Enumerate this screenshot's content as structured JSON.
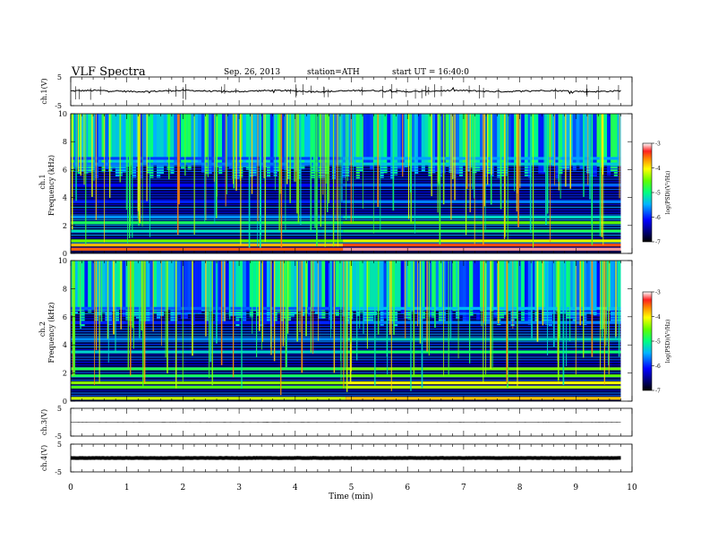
{
  "header": {
    "title": "VLF  Spectra",
    "date": "Sep. 26, 2013",
    "station": "station=ATH",
    "start": "start  UT =   16:40:0"
  },
  "chart_data": {
    "type": "heatmap",
    "title": "VLF  Spectra",
    "xlabel": "Time  (min)",
    "x_ticks": [
      "0",
      "1",
      "2",
      "3",
      "4",
      "5",
      "6",
      "7",
      "8",
      "9",
      "10"
    ],
    "xlim": [
      0,
      10
    ],
    "data_end_min": 9.8,
    "panels": [
      {
        "name": "ch.1",
        "kind": "waveform",
        "ylabel": "ch.1(V)",
        "ylim": [
          -5,
          5
        ],
        "y_ticks": [
          "5",
          "-5"
        ],
        "level": 0.1,
        "noise": 0.25
      },
      {
        "name": "ch.1",
        "kind": "spectrogram",
        "ylabel_top": "ch.1",
        "ylabel": "Frequency  (kHz)",
        "ylim": [
          0,
          10
        ],
        "y_ticks": [
          "0",
          "2",
          "4",
          "6",
          "8",
          "10"
        ],
        "colorbar": {
          "label": "log(PSD)(V²/Hz)",
          "ticks": [
            "-3",
            "-4",
            "-5",
            "-6",
            "-7"
          ],
          "range": [
            -7,
            -3
          ]
        },
        "upper_band": {
          "low_khz": 6.5,
          "high_khz": 10,
          "level": -5.4
        },
        "lines": [
          {
            "freq_khz": 0.3,
            "level": -3.5
          },
          {
            "freq_khz": 0.6,
            "level": -3.8
          },
          {
            "freq_khz": 0.9,
            "level": -4.5
          },
          {
            "freq_khz": 1.6,
            "level": -5.2
          },
          {
            "freq_khz": 2.2,
            "level": -4.9
          },
          {
            "freq_khz": 2.6,
            "level": -5.6
          },
          {
            "freq_khz": 3.7,
            "level": -6.0
          },
          {
            "freq_khz": 4.9,
            "level": -6.1
          },
          {
            "freq_khz": 6.4,
            "level": -5.7
          },
          {
            "freq_khz": 6.8,
            "level": -5.9
          }
        ],
        "shift_min": 4.85
      },
      {
        "name": "ch.2",
        "kind": "spectrogram",
        "ylabel_top": "ch.2",
        "ylabel": "Frequency  (kHz)",
        "ylim": [
          0,
          10
        ],
        "y_ticks": [
          "0",
          "2",
          "4",
          "6",
          "8",
          "10"
        ],
        "colorbar": {
          "label": "log(PSD)(V²/Hz)",
          "ticks": [
            "-3",
            "-4",
            "-5",
            "-6",
            "-7"
          ],
          "range": [
            -7,
            -3
          ]
        },
        "upper_band": {
          "low_khz": 6.5,
          "high_khz": 10,
          "level": -5.5
        },
        "lines": [
          {
            "freq_khz": 0.2,
            "level": -4.2
          },
          {
            "freq_khz": 1.0,
            "level": -4.6
          },
          {
            "freq_khz": 1.3,
            "level": -4.4
          },
          {
            "freq_khz": 1.8,
            "level": -4.9
          },
          {
            "freq_khz": 2.3,
            "level": -4.8
          },
          {
            "freq_khz": 3.5,
            "level": -5.3
          },
          {
            "freq_khz": 4.4,
            "level": -5.6
          },
          {
            "freq_khz": 5.6,
            "level": -6.0
          },
          {
            "freq_khz": 6.6,
            "level": -5.8
          }
        ],
        "shift_min": 4.9
      },
      {
        "name": "ch.3",
        "kind": "waveform",
        "ylabel": "ch.3(V)",
        "ylim": [
          -5,
          5
        ],
        "y_ticks": [
          "5",
          "-5"
        ],
        "level": 0.0,
        "noise": 0.02
      },
      {
        "name": "ch.4",
        "kind": "waveform",
        "ylabel": "ch.4(V)",
        "ylim": [
          -5,
          5
        ],
        "y_ticks": [
          "5",
          "-5"
        ],
        "level": 0.0,
        "noise": 0.05,
        "thick": true
      }
    ]
  }
}
